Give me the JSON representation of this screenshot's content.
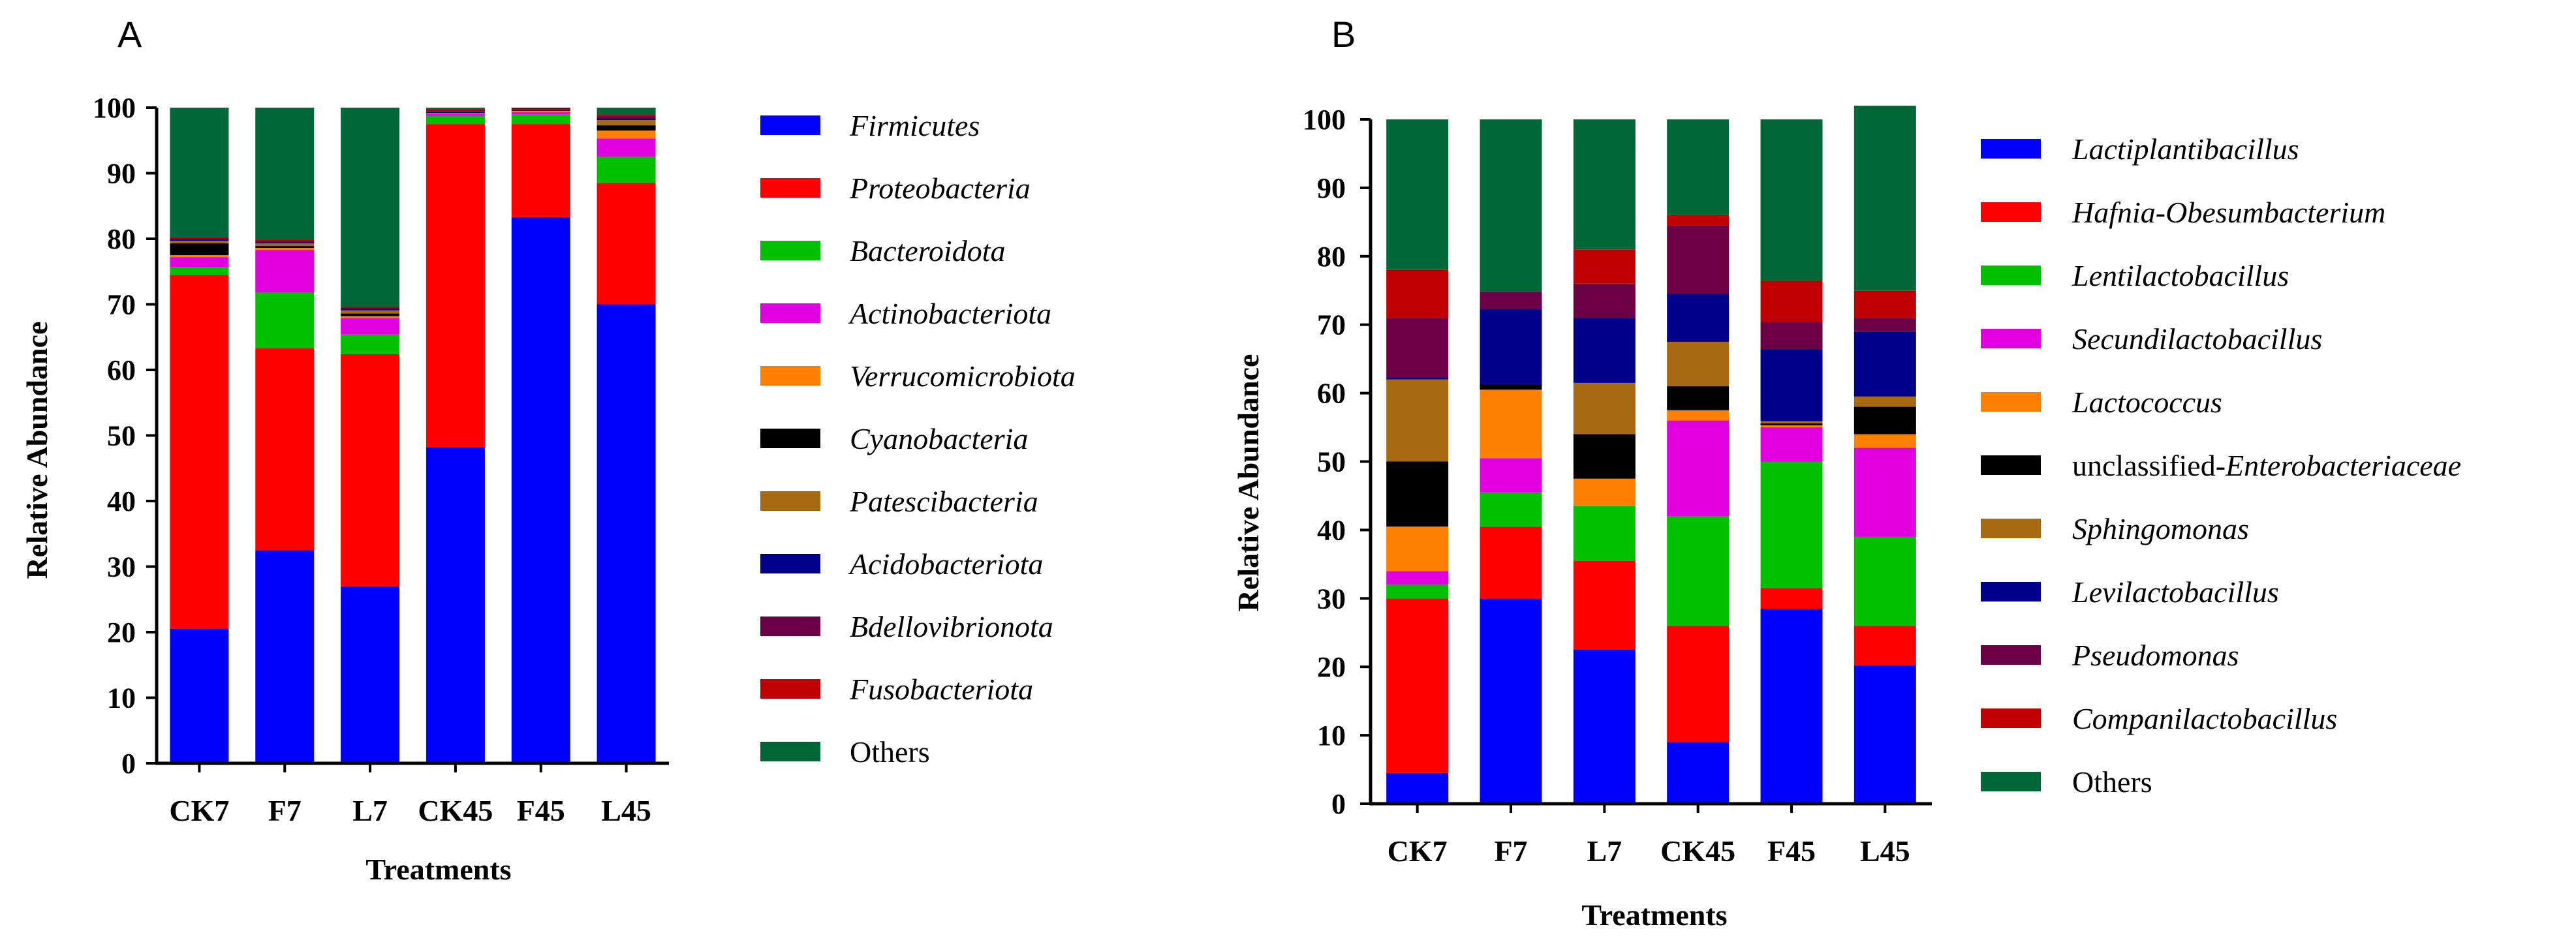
{
  "chart_data": [
    {
      "panel": "A",
      "type": "bar",
      "stacked": true,
      "categories": [
        "CK7",
        "F7",
        "L7",
        "CK45",
        "F45",
        "L45"
      ],
      "xlabel": "Treatments",
      "ylabel": "Relative Abundance",
      "ylim": [
        0,
        100
      ],
      "yticks": [
        "0",
        "10",
        "20",
        "30",
        "40",
        "50",
        "60",
        "70",
        "80",
        "90",
        "100"
      ],
      "legend_position": "right",
      "series": [
        {
          "name": "Firmicutes",
          "italic": true,
          "color": "#0000FF",
          "values": [
            20.5,
            32.5,
            27.0,
            48.2,
            83.3,
            70.0
          ]
        },
        {
          "name": "Proteobacteria",
          "italic": true,
          "color": "#FF0000",
          "values": [
            54.0,
            30.8,
            35.4,
            49.3,
            14.2,
            18.5
          ]
        },
        {
          "name": "Bacteroidota",
          "italic": true,
          "color": "#00C000",
          "values": [
            1.2,
            8.5,
            3.0,
            1.3,
            1.5,
            4.0
          ]
        },
        {
          "name": "Actinobacteriota",
          "italic": true,
          "color": "#E000E0",
          "values": [
            1.5,
            6.5,
            2.5,
            0.3,
            0.3,
            2.8
          ]
        },
        {
          "name": "Verrucomicrobiota",
          "italic": true,
          "color": "#FF8000",
          "values": [
            0.3,
            0.3,
            0.3,
            0.1,
            0.2,
            1.2
          ]
        },
        {
          "name": "Cyanobacteria",
          "italic": true,
          "color": "#000000",
          "values": [
            1.8,
            0.3,
            0.4,
            0.1,
            0.1,
            0.8
          ]
        },
        {
          "name": "Patescibacteria",
          "italic": true,
          "color": "#A86A10",
          "values": [
            0.4,
            0.4,
            0.5,
            0.1,
            0.1,
            0.8
          ]
        },
        {
          "name": "Acidobacteriota",
          "italic": true,
          "color": "#00008B",
          "values": [
            0.2,
            0.2,
            0.2,
            0.1,
            0.1,
            0.3
          ]
        },
        {
          "name": "Bdellovibrionota",
          "italic": true,
          "color": "#6B0046",
          "values": [
            0.2,
            0.2,
            0.2,
            0.1,
            0.1,
            0.3
          ]
        },
        {
          "name": "Fusobacteriota",
          "italic": true,
          "color": "#C00000",
          "values": [
            0.1,
            0.1,
            0.1,
            0.1,
            0.1,
            0.3
          ]
        },
        {
          "name": "Others",
          "italic": false,
          "color": "#006838",
          "values": [
            19.8,
            20.2,
            30.4,
            0.3,
            0.0,
            1.0
          ]
        }
      ]
    },
    {
      "panel": "B",
      "type": "bar",
      "stacked": true,
      "categories": [
        "CK7",
        "F7",
        "L7",
        "CK45",
        "F45",
        "L45"
      ],
      "xlabel": "Treatments",
      "ylabel": "Relative Abundance",
      "ylim": [
        0,
        100
      ],
      "yticks": [
        "0",
        "10",
        "20",
        "30",
        "40",
        "50",
        "60",
        "70",
        "80",
        "90",
        "100"
      ],
      "legend_position": "right",
      "series": [
        {
          "name": "Lactiplantibacillus",
          "italic": true,
          "color": "#0000FF",
          "values": [
            4.5,
            30.0,
            22.5,
            9.0,
            28.5,
            20.2
          ]
        },
        {
          "name": "Hafnia-Obesumbacterium",
          "italic": true,
          "color": "#FF0000",
          "values": [
            25.5,
            10.5,
            13.0,
            17.0,
            3.0,
            5.8
          ]
        },
        {
          "name": "Lentilactobacillus",
          "italic": true,
          "color": "#00C000",
          "values": [
            2.0,
            5.0,
            8.0,
            16.0,
            18.5,
            13.0
          ]
        },
        {
          "name": "Secundilactobacillus",
          "italic": true,
          "color": "#E000E0",
          "values": [
            2.0,
            5.0,
            0.0,
            14.0,
            5.0,
            13.0
          ]
        },
        {
          "name": "Lactococcus",
          "italic": true,
          "color": "#FF8000",
          "values": [
            6.5,
            10.0,
            4.0,
            1.5,
            0.3,
            2.0
          ]
        },
        {
          "name": "unclassified-Enterobacteriaceae",
          "name_plain": "unclassified-",
          "name_italic": "Enterobacteriaceae",
          "italic": false,
          "color": "#000000",
          "values": [
            9.5,
            0.8,
            6.5,
            3.5,
            0.3,
            4.0
          ]
        },
        {
          "name": "Sphingomonas",
          "italic": true,
          "color": "#A86A10",
          "values": [
            12.0,
            0.0,
            7.5,
            6.5,
            0.3,
            1.5
          ]
        },
        {
          "name": "Levilactobacillus",
          "italic": true,
          "color": "#00008B",
          "values": [
            0.3,
            11.0,
            9.5,
            7.0,
            10.5,
            9.5
          ]
        },
        {
          "name": "Pseudomonas",
          "italic": true,
          "color": "#6B0046",
          "values": [
            8.7,
            2.5,
            5.0,
            10.0,
            4.0,
            2.0
          ]
        },
        {
          "name": "Companilactobacillus",
          "italic": true,
          "color": "#C00000",
          "values": [
            7.0,
            0.0,
            5.0,
            1.5,
            6.0,
            4.0
          ]
        },
        {
          "name": "Others",
          "italic": false,
          "color": "#006838",
          "values": [
            22.0,
            25.2,
            19.0,
            14.0,
            23.6,
            27.0
          ]
        }
      ]
    }
  ],
  "panels": [
    {
      "label": "A"
    },
    {
      "label": "B"
    }
  ]
}
